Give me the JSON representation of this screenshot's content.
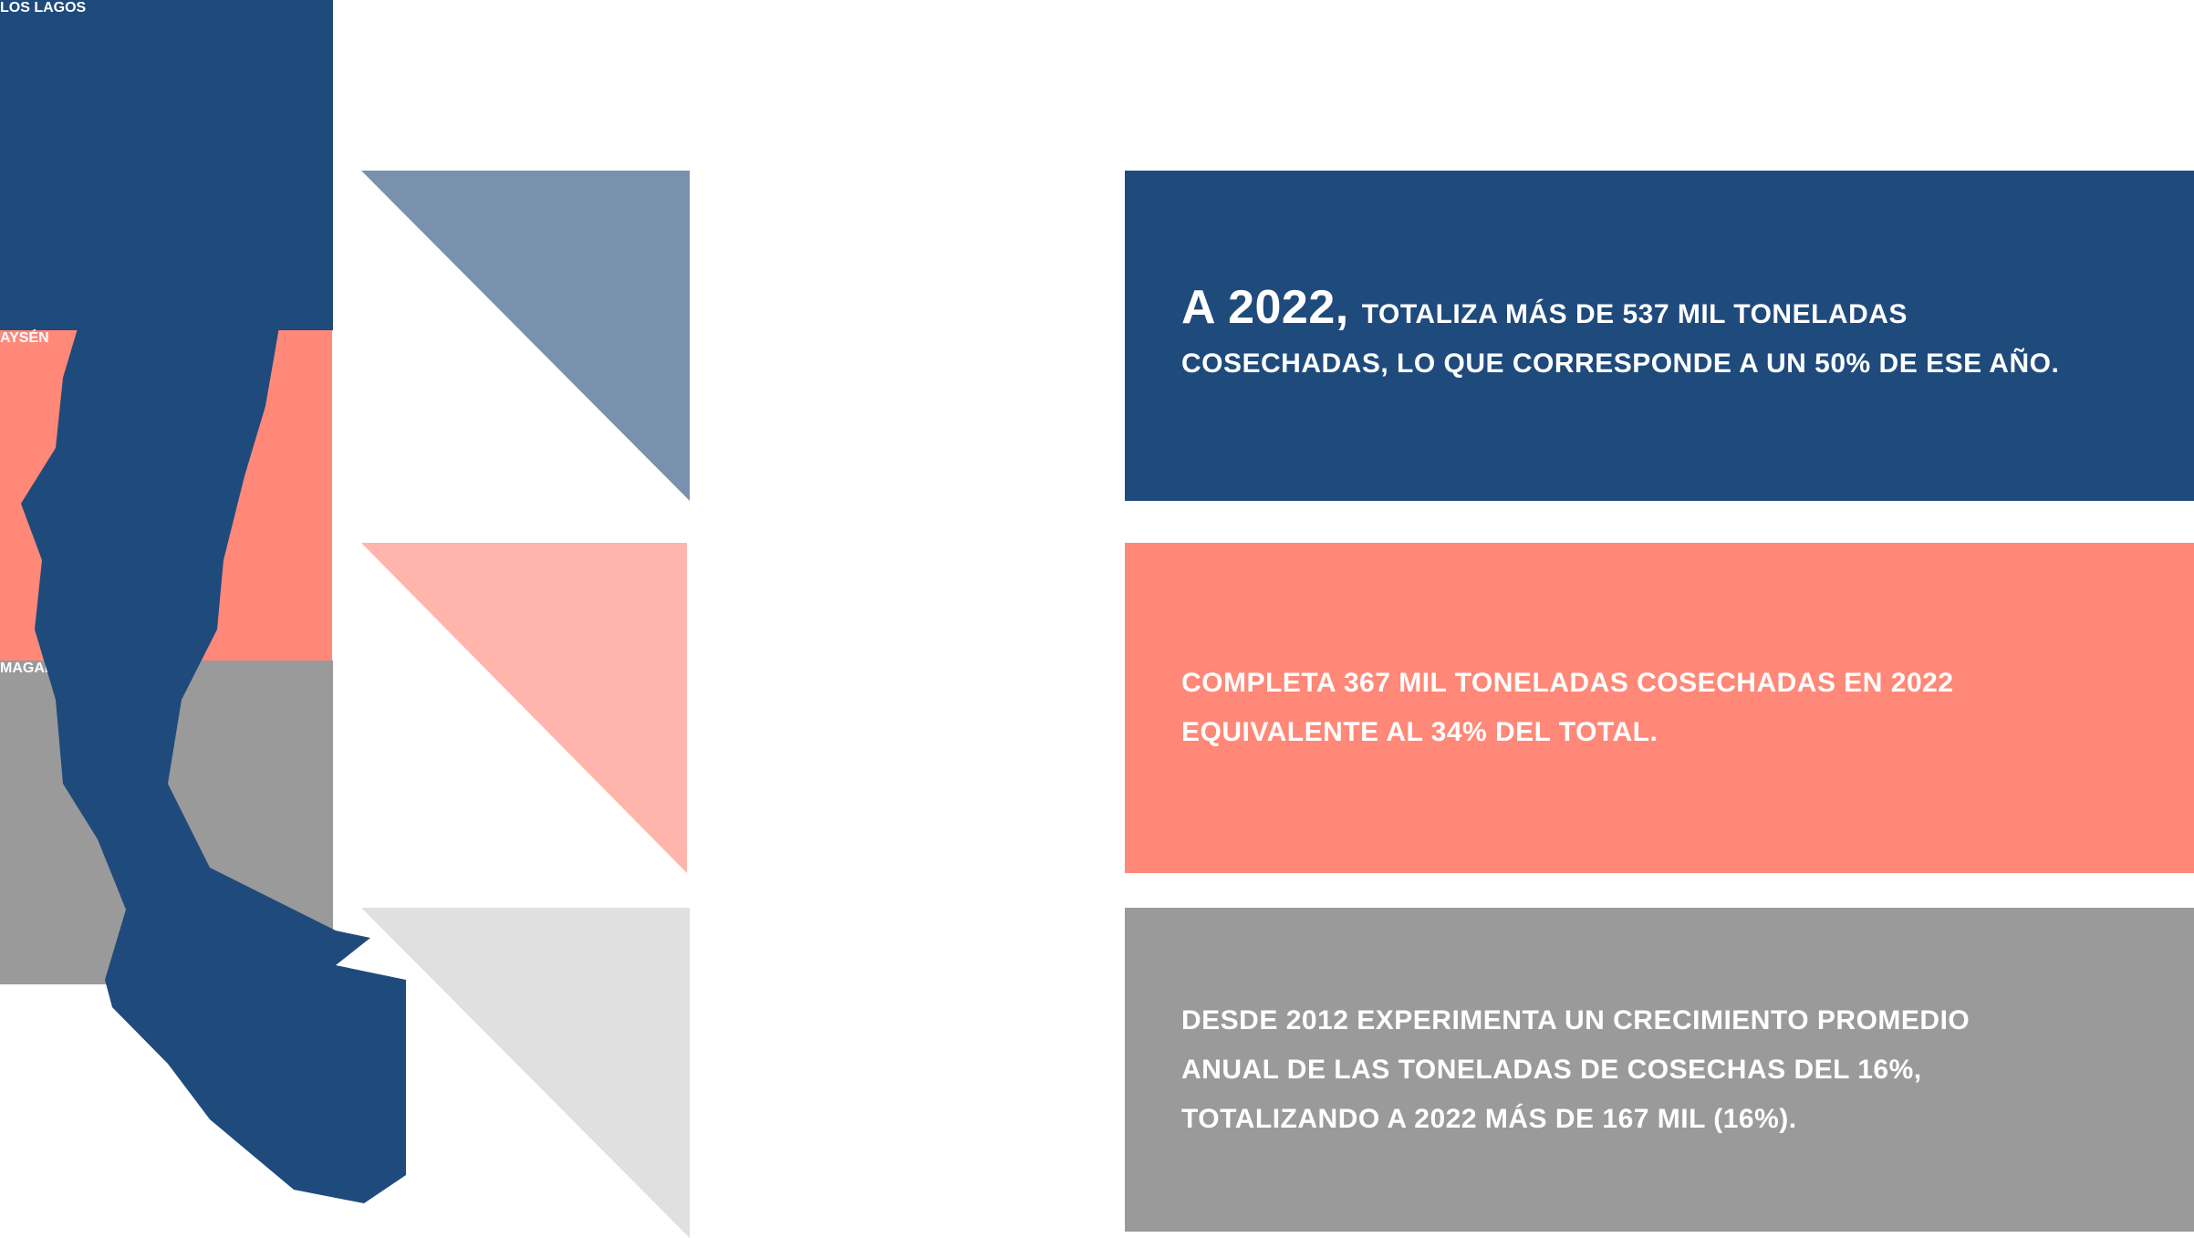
{
  "rows": [
    {
      "region": "LOS LAGOS",
      "lead": "A 2022,",
      "lines": [
        "TOTALIZA MÁS DE 537 MIL TONELADAS",
        "COSECHADAS, LO QUE CORRESPONDE A UN 50% DE ESE AÑO."
      ]
    },
    {
      "region": "AYSÉN",
      "lines": [
        "COMPLETA 367 MIL TONELADAS COSECHADAS EN 2022",
        "EQUIVALENTE AL 34% DEL TOTAL."
      ]
    },
    {
      "region": "MAGALLANES",
      "lines": [
        "DESDE 2012 EXPERIMENTA UN CRECIMIENTO PROMEDIO",
        "ANUAL DE LAS TONELADAS DE COSECHAS DEL 16%,",
        "TOTALIZANDO A 2022 MÁS DE 167 MIL (16%)."
      ]
    }
  ]
}
